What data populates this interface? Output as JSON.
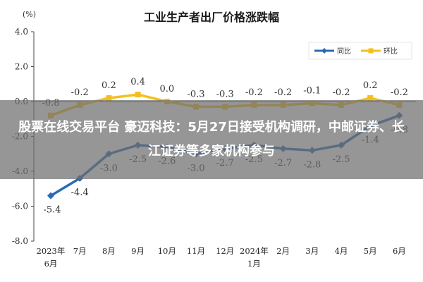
{
  "overlay": {
    "headline": "股票在线交易平台 豪迈科技：5月27日接受机构调研，中邮证券、长江证券等多家机构参与"
  },
  "chart_data": {
    "type": "line",
    "title": "工业生产者出厂价格涨跌幅",
    "unit": "(%)",
    "ylim": [
      -8.0,
      4.0
    ],
    "yticks": [
      -8.0,
      -6.0,
      -4.0,
      -2.0,
      0.0,
      2.0,
      4.0
    ],
    "ytick_labels": [
      "-8.0",
      "-6.0",
      "-4.0",
      "-2.0",
      "0.0",
      "2.0",
      "4.0"
    ],
    "categories": [
      "2023年6月",
      "7月",
      "8月",
      "9月",
      "10月",
      "11月",
      "12月",
      "2024年1月",
      "2月",
      "3月",
      "4月",
      "5月",
      "6月"
    ],
    "x_label_lines": [
      [
        "2023年",
        "6月"
      ],
      [
        "7月"
      ],
      [
        "8月"
      ],
      [
        "9月"
      ],
      [
        "10月"
      ],
      [
        "11月"
      ],
      [
        "12月"
      ],
      [
        "2024年",
        "1月"
      ],
      [
        "2月"
      ],
      [
        "3月"
      ],
      [
        "4月"
      ],
      [
        "5月"
      ],
      [
        "6月"
      ]
    ],
    "grid": false,
    "legend_position": "top-right",
    "series": [
      {
        "name": "同比",
        "color": "#2a6ab4",
        "marker": "diamond",
        "values": [
          -5.4,
          -4.4,
          -3.0,
          -2.5,
          -2.6,
          -3.0,
          -2.7,
          -2.5,
          -2.7,
          -2.8,
          -2.5,
          -1.4,
          -0.8
        ],
        "labels": [
          "-5.4",
          "-4.4",
          "-3.0",
          "-2.5",
          "-2.6",
          "-3.0",
          "-2.7",
          "-2.5",
          "-2.7",
          "-2.8",
          "-2.5",
          "-1.4",
          "-0.8"
        ]
      },
      {
        "name": "环比",
        "color": "#f2c01e",
        "marker": "square",
        "values": [
          -0.8,
          -0.2,
          0.2,
          0.4,
          0.0,
          -0.3,
          -0.3,
          -0.2,
          -0.2,
          -0.1,
          -0.2,
          0.2,
          -0.2
        ],
        "labels": [
          "-0.8",
          "-0.2",
          "0.2",
          "0.4",
          "0.0",
          "-0.3",
          "-0.3",
          "-0.2",
          "-0.2",
          "-0.1",
          "-0.2",
          "0.2",
          "-0.2"
        ]
      }
    ]
  }
}
